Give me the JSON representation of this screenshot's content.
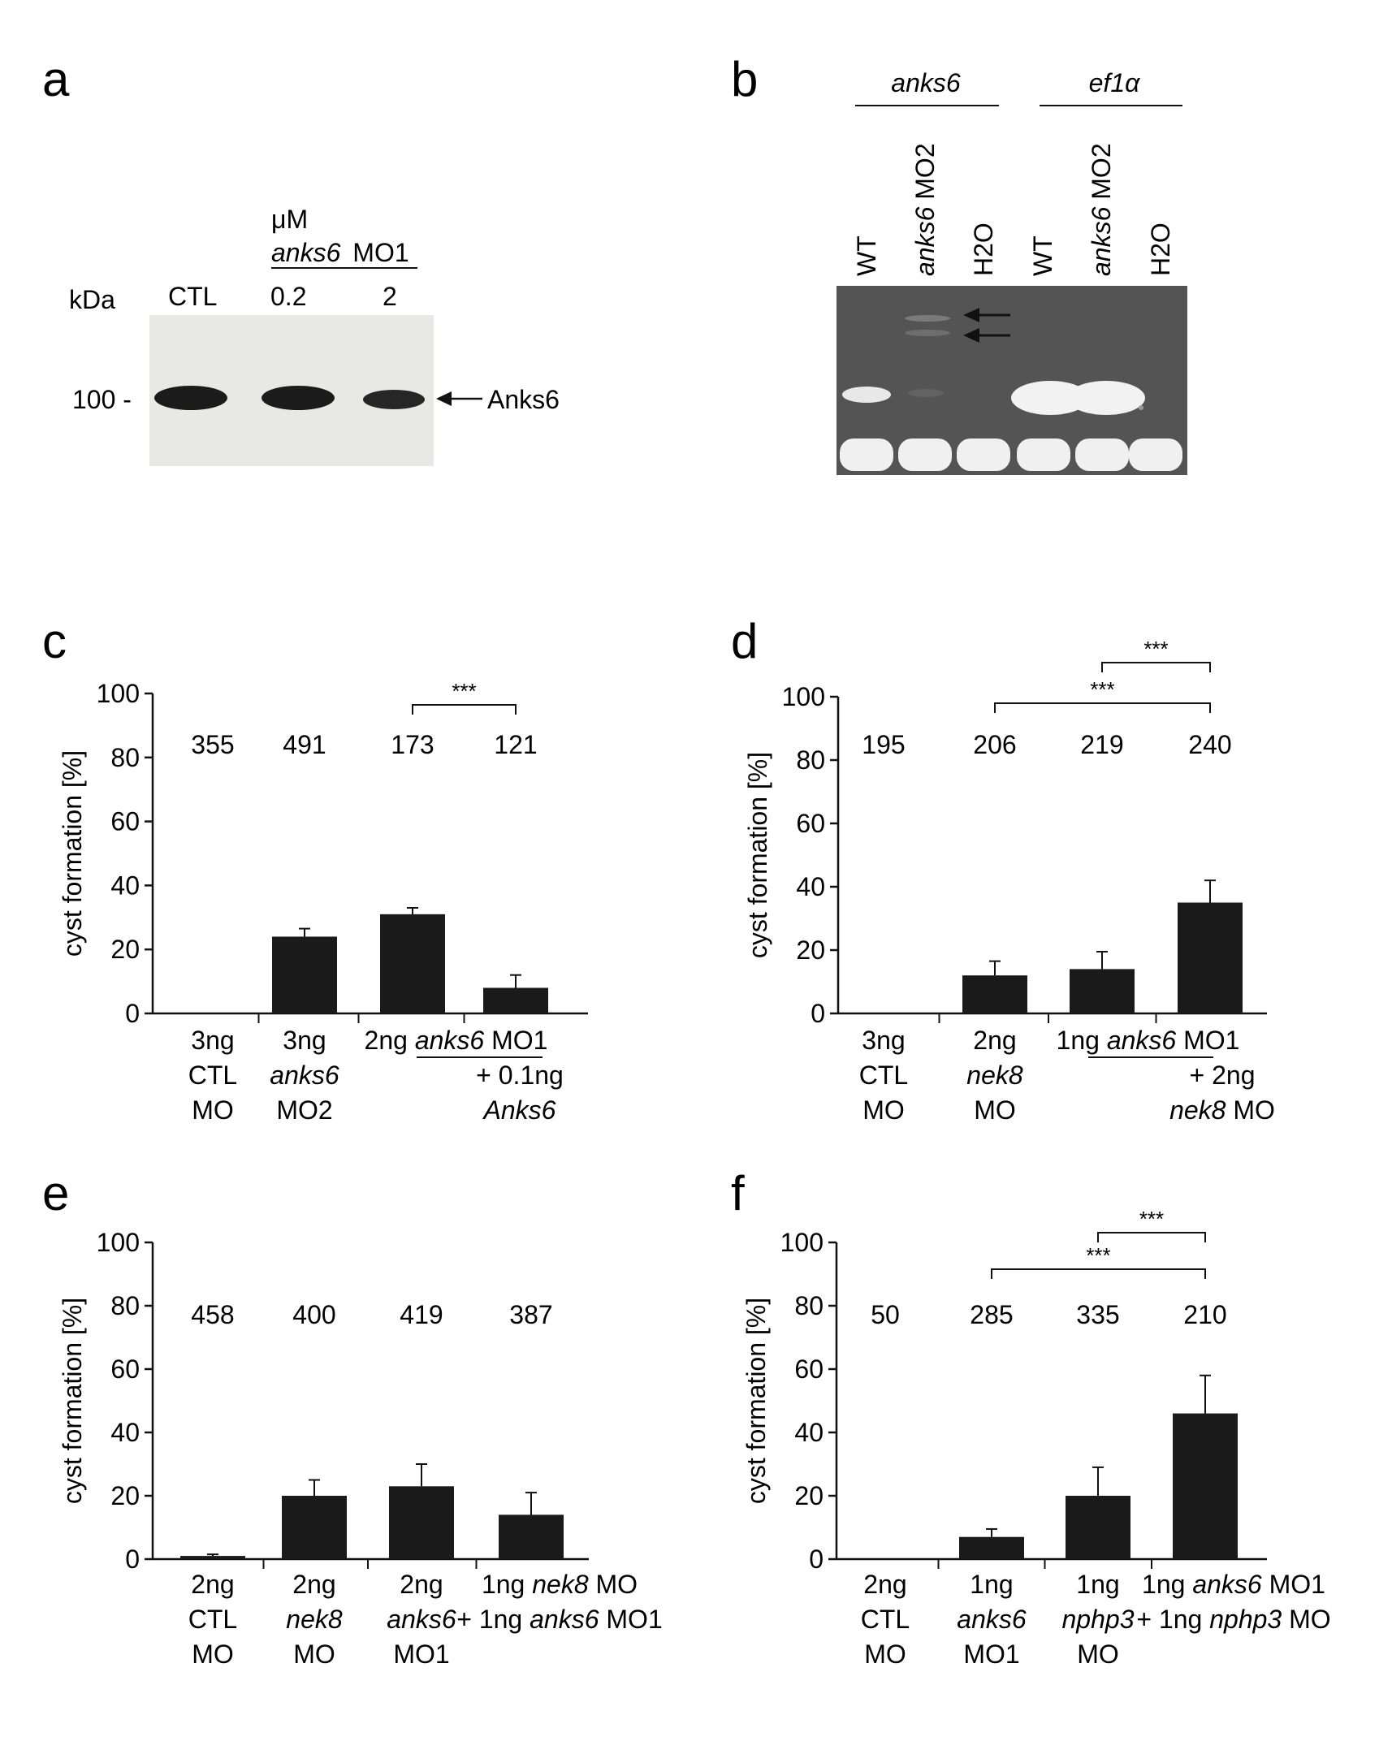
{
  "panels": {
    "a": {
      "letter": "a",
      "unit_line": "μM",
      "mo_label_italic": "anks6",
      "mo_label_rest": "MO1",
      "kda_label": "kDa",
      "lanes": [
        "CTL",
        "0.2",
        "2"
      ],
      "marker_label": "100 -",
      "arrow_label": "Anks6",
      "band_intensity": [
        1.0,
        1.0,
        0.75
      ]
    },
    "b": {
      "letter": "b",
      "gene_groups": [
        "anks6",
        "ef1α"
      ],
      "lanes": [
        {
          "italic": "",
          "rest": "WT"
        },
        {
          "italic": "anks6",
          "rest": " MO2"
        },
        {
          "italic": "",
          "rest": "H2O"
        },
        {
          "italic": "",
          "rest": "WT"
        },
        {
          "italic": "anks6",
          "rest": " MO2"
        },
        {
          "italic": "",
          "rest": "H2O"
        }
      ]
    }
  },
  "colors": {
    "bar": "#1a1a1a",
    "blot_bg": "#e8e8e6",
    "gel_bg": "#545454"
  },
  "chart_data": [
    {
      "panel": "c",
      "type": "bar",
      "ylabel": "cyst formation [%]",
      "ylim": [
        0,
        100
      ],
      "yticks": [
        0,
        20,
        40,
        60,
        80,
        100
      ],
      "n_labels": [
        "355",
        "491",
        "173",
        "121"
      ],
      "values": [
        0,
        24,
        31,
        8
      ],
      "errors": [
        0,
        2.5,
        2,
        4
      ],
      "categories": [
        [
          {
            "t": "3ng",
            "i": false
          },
          {
            "t": "CTL",
            "i": false
          },
          {
            "t": "MO",
            "i": false
          }
        ],
        [
          {
            "t": "3ng",
            "i": false
          },
          {
            "t": "anks6",
            "i": true
          },
          {
            "t": "MO2",
            "i": false
          }
        ],
        [
          {
            "t": "2ng ",
            "i": false,
            "s": "anks6",
            "r": " MO1"
          }
        ],
        [
          {
            "t": "+ 0.1ng",
            "i": false
          },
          {
            "t": "Anks6",
            "i": true
          }
        ]
      ],
      "significance": [
        {
          "label": "***",
          "from": 2,
          "to": 3
        }
      ]
    },
    {
      "panel": "d",
      "type": "bar",
      "ylabel": "cyst formation [%]",
      "ylim": [
        0,
        100
      ],
      "yticks": [
        0,
        20,
        40,
        60,
        80,
        100
      ],
      "n_labels": [
        "195",
        "206",
        "219",
        "240"
      ],
      "values": [
        0,
        12,
        14,
        35
      ],
      "errors": [
        0,
        4.5,
        5.5,
        7
      ],
      "categories": [
        [
          {
            "t": "3ng",
            "i": false
          },
          {
            "t": "CTL",
            "i": false
          },
          {
            "t": "MO",
            "i": false
          }
        ],
        [
          {
            "t": "2ng",
            "i": false
          },
          {
            "t": "nek8",
            "i": true
          },
          {
            "t": "MO",
            "i": false
          }
        ],
        [
          {
            "t": "1ng ",
            "i": false,
            "s": "anks6",
            "r": " MO1"
          }
        ],
        [
          {
            "t": "+ 2ng",
            "i": false
          },
          {
            "t": "",
            "i": false,
            "s": "nek8",
            "r": " MO"
          }
        ]
      ],
      "significance": [
        {
          "label": "***",
          "from": 2,
          "to": 3
        },
        {
          "label": "***",
          "from": 1,
          "to": 3
        }
      ]
    },
    {
      "panel": "e",
      "type": "bar",
      "ylabel": "cyst formation [%]",
      "ylim": [
        0,
        100
      ],
      "yticks": [
        0,
        20,
        40,
        60,
        80,
        100
      ],
      "n_labels": [
        "458",
        "400",
        "419",
        "387"
      ],
      "values": [
        1,
        20,
        23,
        14
      ],
      "errors": [
        0.5,
        5,
        7,
        7
      ],
      "categories": [
        [
          {
            "t": "2ng",
            "i": false
          },
          {
            "t": "CTL",
            "i": false
          },
          {
            "t": "MO",
            "i": false
          }
        ],
        [
          {
            "t": "2ng",
            "i": false
          },
          {
            "t": "nek8",
            "i": true
          },
          {
            "t": "MO",
            "i": false
          }
        ],
        [
          {
            "t": "2ng",
            "i": false
          },
          {
            "t": "anks6",
            "i": true
          },
          {
            "t": "MO1",
            "i": false
          }
        ],
        [
          {
            "t": "1ng ",
            "i": false,
            "s": "nek8",
            "r": " MO"
          },
          {
            "t": "+ 1ng ",
            "i": false,
            "s": "anks6",
            "r": " MO1"
          }
        ]
      ],
      "significance": []
    },
    {
      "panel": "f",
      "type": "bar",
      "ylabel": "cyst formation [%]",
      "ylim": [
        0,
        100
      ],
      "yticks": [
        0,
        20,
        40,
        60,
        80,
        100
      ],
      "n_labels": [
        "50",
        "285",
        "335",
        "210"
      ],
      "values": [
        0,
        7,
        20,
        46
      ],
      "errors": [
        0,
        2.5,
        9,
        12
      ],
      "categories": [
        [
          {
            "t": "2ng",
            "i": false
          },
          {
            "t": "CTL",
            "i": false
          },
          {
            "t": "MO",
            "i": false
          }
        ],
        [
          {
            "t": "1ng",
            "i": false
          },
          {
            "t": "anks6",
            "i": true
          },
          {
            "t": "MO1",
            "i": false
          }
        ],
        [
          {
            "t": "1ng",
            "i": false
          },
          {
            "t": "nphp3",
            "i": true
          },
          {
            "t": "MO",
            "i": false
          }
        ],
        [
          {
            "t": "1ng ",
            "i": false,
            "s": "anks6",
            "r": " MO1"
          },
          {
            "t": "+ 1ng ",
            "i": false,
            "s": "nphp3",
            "r": " MO"
          }
        ]
      ],
      "significance": [
        {
          "label": "***",
          "from": 2,
          "to": 3
        },
        {
          "label": "***",
          "from": 1,
          "to": 3
        }
      ]
    }
  ]
}
